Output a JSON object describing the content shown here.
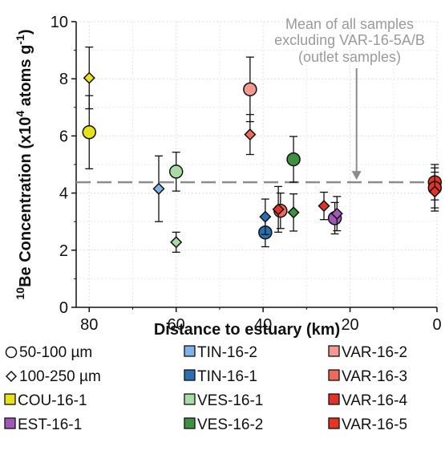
{
  "chart_data": {
    "type": "scatter",
    "xlabel": "Distance to estuary (km)",
    "ylabel_parts": {
      "pre": "Be Concentration (x10",
      "sup1": "10",
      "sup2": "4",
      "mid": " atoms g",
      "sup3": "-1",
      "post": ")"
    },
    "xlim": [
      83,
      0
    ],
    "ylim": [
      0,
      10
    ],
    "xticks": [
      "80",
      "60",
      "40",
      "20",
      "0"
    ],
    "xtick_values": [
      80,
      60,
      40,
      20,
      0
    ],
    "yticks": [
      "0",
      "2",
      "4",
      "6",
      "8",
      "10"
    ],
    "ytick_values": [
      0,
      2,
      4,
      6,
      8,
      10
    ],
    "grid": true,
    "mean_line": {
      "value": 4.38,
      "annotation": [
        "Mean of all samples",
        "excluding VAR-16-5A/B",
        "(outlet samples)"
      ]
    },
    "colors": {
      "COU-16-1": "#e8e21a",
      "EST-16-1": "#a057b8",
      "TIN-16-2": "#7fb2e8",
      "TIN-16-1": "#2a6fb0",
      "VES-16-1": "#a9dba5",
      "VES-16-2": "#3d9140",
      "VAR-16-2": "#f59990",
      "VAR-16-3": "#ee6a5a",
      "VAR-16-4": "#e0342a",
      "VAR-16-5": "#e63322",
      "mean_line": "#8c8c8c"
    },
    "series": [
      {
        "sample": "COU-16-1",
        "size": "50-100",
        "marker": "circle",
        "x": 80,
        "y": 6.13,
        "err": 1.28
      },
      {
        "sample": "COU-16-1",
        "size": "100-250",
        "marker": "diamond",
        "x": 80,
        "y": 8.03,
        "err": 1.08
      },
      {
        "sample": "TIN-16-2",
        "size": "100-250",
        "marker": "diamond",
        "x": 64,
        "y": 4.15,
        "err": 1.15
      },
      {
        "sample": "VES-16-1",
        "size": "50-100",
        "marker": "circle",
        "x": 60,
        "y": 4.75,
        "err": 0.68
      },
      {
        "sample": "VES-16-1",
        "size": "100-250",
        "marker": "diamond",
        "x": 60,
        "y": 2.28,
        "err": 0.35
      },
      {
        "sample": "VAR-16-2",
        "size": "50-100",
        "marker": "circle",
        "x": 43,
        "y": 7.63,
        "err": 1.13
      },
      {
        "sample": "VAR-16-3",
        "size": "100-250",
        "marker": "diamond",
        "x": 43,
        "y": 6.05,
        "err": 0.7
      },
      {
        "sample": "TIN-16-1",
        "size": "50-100",
        "marker": "circle",
        "x": 39.5,
        "y": 2.62,
        "err": 0.5
      },
      {
        "sample": "TIN-16-1",
        "size": "100-250",
        "marker": "diamond",
        "x": 39.5,
        "y": 3.17,
        "err": 0.62
      },
      {
        "sample": "VAR-16-3",
        "size": "50-100",
        "marker": "circle",
        "x": 36,
        "y": 3.38,
        "err": 0.62
      },
      {
        "sample": "VAR-16-4",
        "size": "100-250",
        "marker": "diamond",
        "x": 36.5,
        "y": 3.43,
        "err": 0.8
      },
      {
        "sample": "VES-16-2",
        "size": "50-100",
        "marker": "circle",
        "x": 33,
        "y": 5.18,
        "err": 0.8
      },
      {
        "sample": "VES-16-2",
        "size": "100-250",
        "marker": "diamond",
        "x": 33,
        "y": 3.32,
        "err": 0.65
      },
      {
        "sample": "VAR-16-4",
        "size": "100-250",
        "marker": "diamond",
        "x": 26,
        "y": 3.55,
        "err": 0.48
      },
      {
        "sample": "EST-16-1",
        "size": "50-100",
        "marker": "circle",
        "x": 23.5,
        "y": 3.12,
        "err": 0.55
      },
      {
        "sample": "EST-16-1",
        "size": "100-250",
        "marker": "diamond",
        "x": 23,
        "y": 3.28,
        "err": 0.6
      },
      {
        "sample": "VAR-16-5",
        "size": "50-100",
        "marker": "circle",
        "x": 0.5,
        "y": 4.38,
        "err": 0.62
      },
      {
        "sample": "VAR-16-5",
        "size": "50-100",
        "marker": "circle",
        "x": 0.5,
        "y": 4.18,
        "err": 0.7
      },
      {
        "sample": "VAR-16-5",
        "size": "100-250",
        "marker": "diamond",
        "x": 0.5,
        "y": 4.05,
        "err": 0.68
      }
    ],
    "legend": {
      "size_entries": [
        {
          "marker": "circle",
          "label": "50-100 µm"
        },
        {
          "marker": "diamond",
          "label": "100-250 µm"
        }
      ],
      "sample_entries": [
        {
          "key": "COU-16-1",
          "label": "COU-16-1"
        },
        {
          "key": "EST-16-1",
          "label": "EST-16-1"
        },
        {
          "key": "TIN-16-2",
          "label": "TIN-16-2"
        },
        {
          "key": "TIN-16-1",
          "label": "TIN-16-1"
        },
        {
          "key": "VES-16-1",
          "label": "VES-16-1"
        },
        {
          "key": "VES-16-2",
          "label": "VES-16-2"
        },
        {
          "key": "VAR-16-2",
          "label": "VAR-16-2"
        },
        {
          "key": "VAR-16-3",
          "label": "VAR-16-3"
        },
        {
          "key": "VAR-16-4",
          "label": "VAR-16-4"
        },
        {
          "key": "VAR-16-5",
          "label": "VAR-16-5"
        }
      ]
    }
  }
}
